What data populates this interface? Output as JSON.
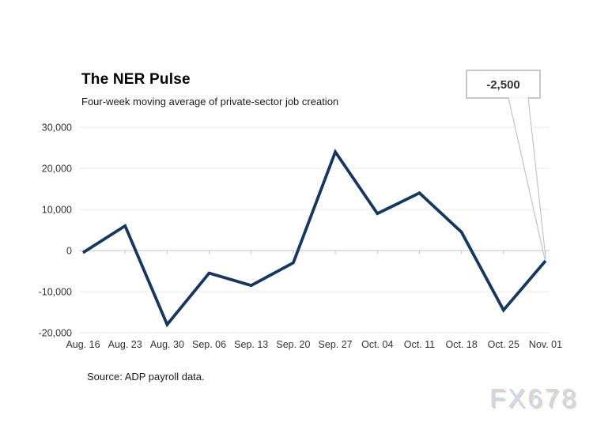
{
  "header": {
    "title": "The NER Pulse",
    "subtitle": "Four-week moving average of private-sector job creation"
  },
  "annotation": {
    "label": "-2,500",
    "text_color": "#cc0000",
    "target_category": "Nov. 01"
  },
  "footer": {
    "source": "Source: ADP payroll data.",
    "watermark": "FX678"
  },
  "chart_data": {
    "type": "line",
    "title": "The NER Pulse",
    "subtitle": "Four-week moving average of private-sector job creation",
    "categories": [
      "Aug. 16",
      "Aug. 23",
      "Aug. 30",
      "Sep. 06",
      "Sep. 13",
      "Sep. 20",
      "Sep. 27",
      "Oct. 04",
      "Oct. 11",
      "Oct. 18",
      "Oct. 25",
      "Nov. 01"
    ],
    "values": [
      -500,
      6000,
      -18000,
      -5500,
      -8500,
      -3000,
      24000,
      9000,
      14000,
      4500,
      -14500,
      -2500
    ],
    "xlabel": "",
    "ylabel": "",
    "ylim": [
      -20000,
      30000
    ],
    "ytick_interval": 10000,
    "grid": "horizontal",
    "legend": "none",
    "line_color": "#17375e",
    "gridline_color": "#e9e9e9",
    "zero_axis_color": "#c6c6c6",
    "annotation": {
      "target_category": "Nov. 01",
      "value": -2500,
      "label": "-2,500"
    }
  }
}
